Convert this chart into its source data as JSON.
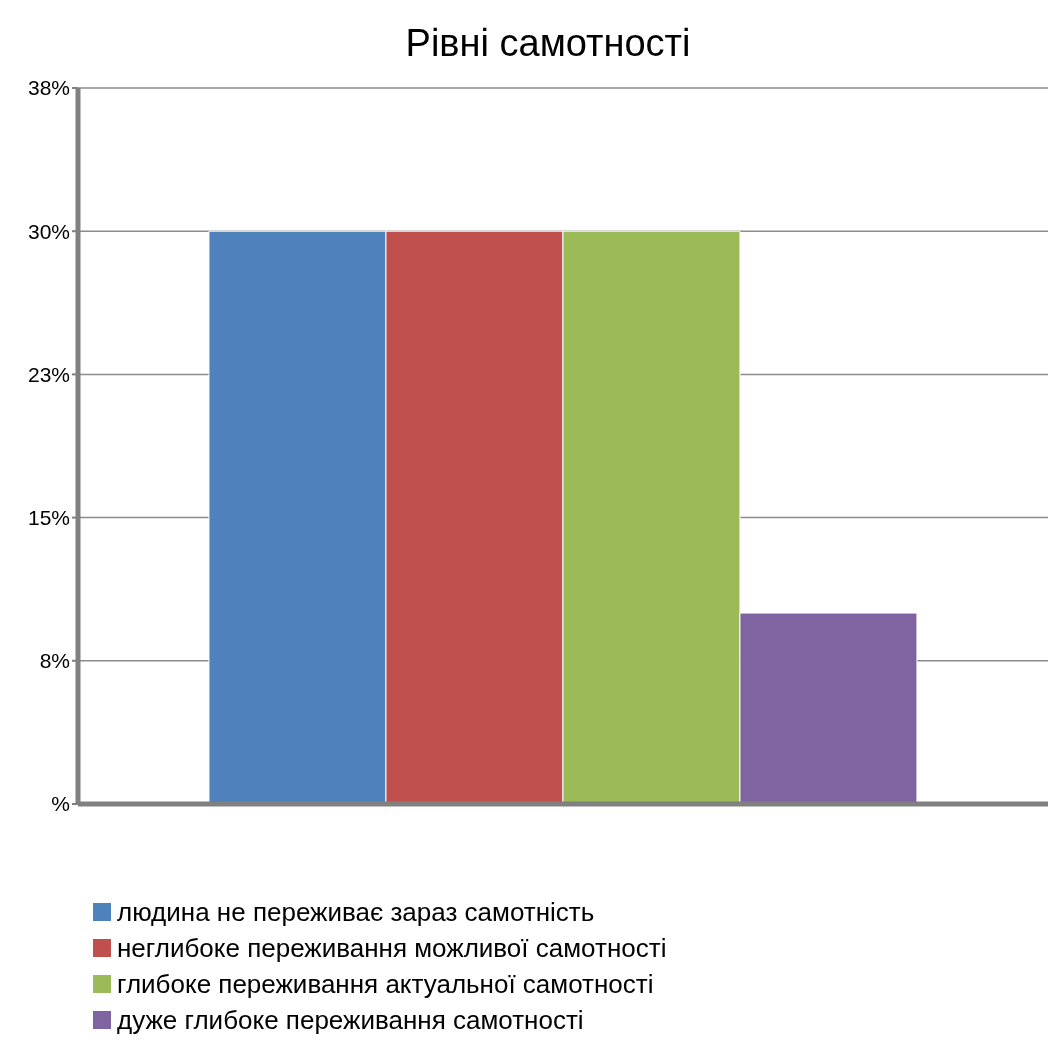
{
  "chart_data": {
    "type": "bar",
    "title": "Рівні самотності",
    "categories": [
      null
    ],
    "series": [
      {
        "name": "людина не переживає зараз самотність",
        "color": "#4f81bd",
        "values": [
          30
        ]
      },
      {
        "name": "неглибоке переживання можливої самотності",
        "color": "#c0504d",
        "values": [
          30
        ]
      },
      {
        "name": "глибоке переживання актуальної самотності",
        "color": "#9bbb59",
        "values": [
          30
        ]
      },
      {
        "name": "дуже глибоке переживання самотності",
        "color": "#8064a2",
        "values": [
          10
        ]
      }
    ],
    "ylim": [
      0,
      37.5
    ],
    "yticks": [
      {
        "value": 0,
        "label": "%"
      },
      {
        "value": 7.5,
        "label": "8%"
      },
      {
        "value": 15,
        "label": "15%"
      },
      {
        "value": 22.5,
        "label": "23%"
      },
      {
        "value": 30,
        "label": "30%"
      },
      {
        "value": 37.5,
        "label": "38%"
      }
    ],
    "grid": "y",
    "legend": "bottom left"
  }
}
